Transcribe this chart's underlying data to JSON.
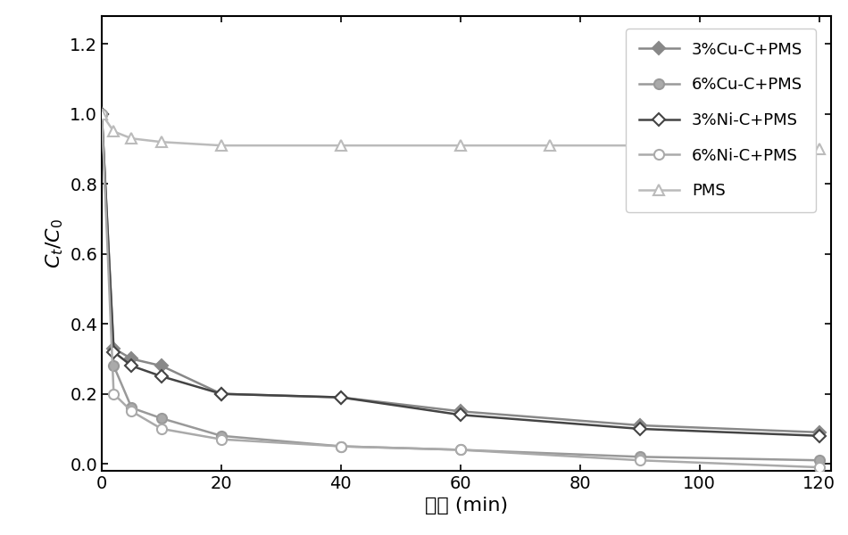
{
  "series": [
    {
      "label": "3%Cu-C+PMS",
      "color": "#888888",
      "marker": "D",
      "markersize": 7,
      "linewidth": 1.8,
      "markerfacecolor": "#888888",
      "markeredgecolor": "#888888",
      "x": [
        0,
        2,
        5,
        10,
        20,
        40,
        60,
        90,
        120
      ],
      "y": [
        1.0,
        0.33,
        0.3,
        0.28,
        0.2,
        0.19,
        0.15,
        0.11,
        0.09
      ]
    },
    {
      "label": "6%Cu-C+PMS",
      "color": "#999999",
      "marker": "o",
      "markersize": 8,
      "linewidth": 1.8,
      "markerfacecolor": "#aaaaaa",
      "markeredgecolor": "#999999",
      "x": [
        0,
        2,
        5,
        10,
        20,
        40,
        60,
        90,
        120
      ],
      "y": [
        1.0,
        0.28,
        0.16,
        0.13,
        0.08,
        0.05,
        0.04,
        0.02,
        0.01
      ]
    },
    {
      "label": "3%Ni-C+PMS",
      "color": "#444444",
      "marker": "D",
      "markersize": 7,
      "linewidth": 1.8,
      "markerfacecolor": "#ffffff",
      "markeredgecolor": "#444444",
      "x": [
        0,
        2,
        5,
        10,
        20,
        40,
        60,
        90,
        120
      ],
      "y": [
        1.0,
        0.32,
        0.28,
        0.25,
        0.2,
        0.19,
        0.14,
        0.1,
        0.08
      ]
    },
    {
      "label": "6%Ni-C+PMS",
      "color": "#aaaaaa",
      "marker": "o",
      "markersize": 8,
      "linewidth": 1.8,
      "markerfacecolor": "#ffffff",
      "markeredgecolor": "#aaaaaa",
      "x": [
        0,
        2,
        5,
        10,
        20,
        40,
        60,
        90,
        120
      ],
      "y": [
        1.0,
        0.2,
        0.15,
        0.1,
        0.07,
        0.05,
        0.04,
        0.01,
        -0.01
      ]
    },
    {
      "label": "PMS",
      "color": "#bbbbbb",
      "marker": "^",
      "markersize": 9,
      "linewidth": 1.8,
      "markerfacecolor": "#ffffff",
      "markeredgecolor": "#bbbbbb",
      "x": [
        0,
        2,
        5,
        10,
        20,
        40,
        60,
        75,
        90,
        120
      ],
      "y": [
        1.0,
        0.95,
        0.93,
        0.92,
        0.91,
        0.91,
        0.91,
        0.91,
        0.91,
        0.9
      ]
    }
  ],
  "xlabel": "时间 (min)",
  "ylabel": "$C_t$/$C_0$",
  "xlim": [
    0,
    122
  ],
  "ylim": [
    -0.02,
    1.28
  ],
  "yticks": [
    0,
    0.2,
    0.4,
    0.6,
    0.8,
    1.0,
    1.2
  ],
  "xticks": [
    0,
    20,
    40,
    60,
    80,
    100,
    120
  ],
  "legend_loc": "center right",
  "background_color": "#ffffff",
  "label_fontsize": 16,
  "tick_fontsize": 14
}
